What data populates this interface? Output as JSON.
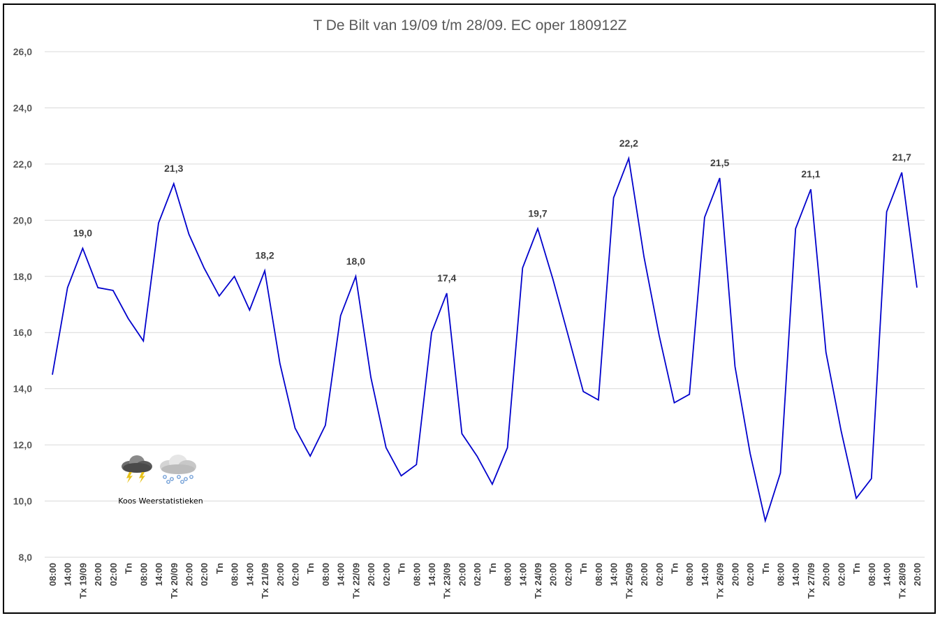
{
  "chart_data": {
    "type": "line",
    "title": "T De Bilt van 19/09 t/m 28/09. EC oper 180912Z",
    "ylim": [
      8.0,
      26.0
    ],
    "y_ticks": [
      "8,0",
      "10,0",
      "12,0",
      "14,0",
      "16,0",
      "18,0",
      "20,0",
      "22,0",
      "24,0",
      "26,0"
    ],
    "grid": true,
    "categories": [
      "08:00",
      "14:00",
      "Tx 19/09",
      "20:00",
      "02:00",
      "Tn",
      "08:00",
      "14:00",
      "Tx 20/09",
      "20:00",
      "02:00",
      "Tn",
      "08:00",
      "14:00",
      "Tx 21/09",
      "20:00",
      "02:00",
      "Tn",
      "08:00",
      "14:00",
      "Tx 22/09",
      "20:00",
      "02:00",
      "Tn",
      "08:00",
      "14:00",
      "Tx 23/09",
      "20:00",
      "02:00",
      "Tn",
      "08:00",
      "14:00",
      "Tx 24/09",
      "20:00",
      "02:00",
      "Tn",
      "08:00",
      "14:00",
      "Tx 25/09",
      "20:00",
      "02:00",
      "Tn",
      "08:00",
      "14:00",
      "Tx 26/09",
      "20:00",
      "02:00",
      "Tn",
      "08:00",
      "14:00",
      "Tx 27/09",
      "20:00",
      "02:00",
      "Tn",
      "08:00",
      "14:00",
      "Tx 28/09",
      "20:00"
    ],
    "series": [
      {
        "name": "T De Bilt",
        "color": "#0000cc",
        "values": [
          14.5,
          17.6,
          19.0,
          17.6,
          17.5,
          16.5,
          15.7,
          19.9,
          21.3,
          19.5,
          18.3,
          17.3,
          18.0,
          16.8,
          18.2,
          14.9,
          12.6,
          11.6,
          12.7,
          16.6,
          18.0,
          14.4,
          11.9,
          10.9,
          11.3,
          16.0,
          17.4,
          12.4,
          11.6,
          10.6,
          11.9,
          18.3,
          19.7,
          17.9,
          15.9,
          13.9,
          13.6,
          20.8,
          22.2,
          18.7,
          15.9,
          13.5,
          13.8,
          20.1,
          21.5,
          14.8,
          11.7,
          9.3,
          11.0,
          19.7,
          21.1,
          15.3,
          12.5,
          10.1,
          10.8,
          20.3,
          21.7,
          17.6
        ]
      }
    ],
    "data_labels": [
      {
        "index": 2,
        "text": "19,0"
      },
      {
        "index": 8,
        "text": "21,3"
      },
      {
        "index": 14,
        "text": "18,2"
      },
      {
        "index": 20,
        "text": "18,0"
      },
      {
        "index": 26,
        "text": "17,4"
      },
      {
        "index": 32,
        "text": "19,7"
      },
      {
        "index": 38,
        "text": "22,2"
      },
      {
        "index": 44,
        "text": "21,5"
      },
      {
        "index": 50,
        "text": "21,1"
      },
      {
        "index": 56,
        "text": "21,7"
      }
    ]
  },
  "watermark": {
    "text": "Koos Weerstatistieken",
    "icons": [
      "thunderstorm-cloud-icon",
      "snow-cloud-icon"
    ]
  },
  "colors": {
    "line": "#0000cc",
    "grid": "#d9d9d9",
    "border": "#000000"
  }
}
